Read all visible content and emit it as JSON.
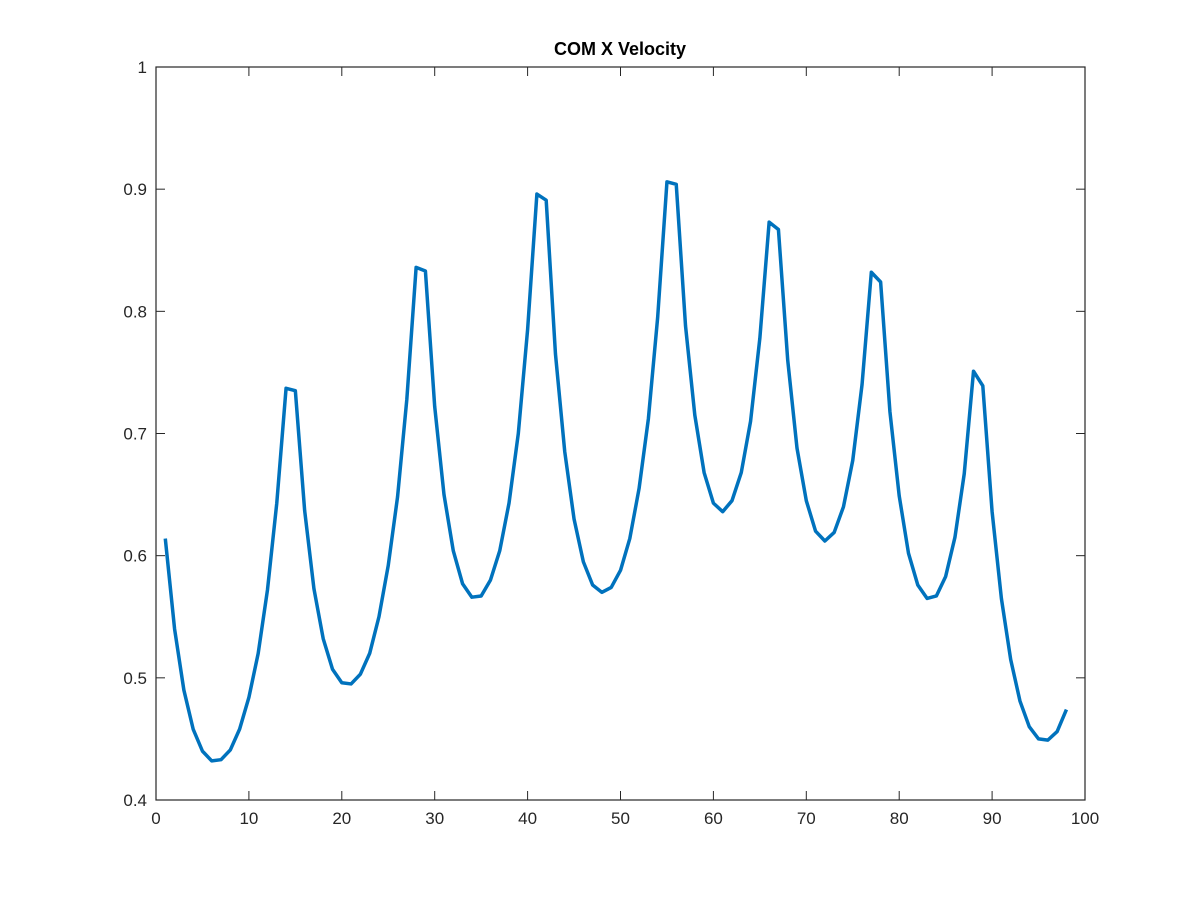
{
  "chart_data": {
    "type": "line",
    "title": "COM X Velocity",
    "xlabel": "",
    "ylabel": "",
    "xlim": [
      0,
      100
    ],
    "ylim": [
      0.4,
      1
    ],
    "xticks": [
      0,
      10,
      20,
      30,
      40,
      50,
      60,
      70,
      80,
      90,
      100
    ],
    "xtick_labels": [
      "0",
      "10",
      "20",
      "30",
      "40",
      "50",
      "60",
      "70",
      "80",
      "90",
      "100"
    ],
    "yticks": [
      0.4,
      0.5,
      0.6,
      0.7,
      0.8,
      0.9,
      1
    ],
    "ytick_labels": [
      "0.4",
      "0.5",
      "0.6",
      "0.7",
      "0.8",
      "0.9",
      "1"
    ],
    "grid": false,
    "legend": "none",
    "line_color": "#0072BD",
    "series": [
      {
        "x": [
          1,
          2,
          3,
          4,
          5,
          6,
          7,
          8,
          9,
          10,
          11,
          12,
          13,
          14,
          15,
          16,
          17,
          18,
          19,
          20,
          21,
          22,
          23,
          24,
          25,
          26,
          27,
          28,
          29,
          30,
          31,
          32,
          33,
          34,
          35,
          36,
          37,
          38,
          39,
          40,
          41,
          42,
          43,
          44,
          45,
          46,
          47,
          48,
          49,
          50,
          51,
          52,
          53,
          54,
          55,
          56,
          57,
          58,
          59,
          60,
          61,
          62,
          63,
          64,
          65,
          66,
          67,
          68,
          69,
          70,
          71,
          72,
          73,
          74,
          75,
          76,
          77,
          78,
          79,
          80,
          81,
          82,
          83,
          84,
          85,
          86,
          87,
          88,
          89,
          90,
          91,
          92,
          93,
          94,
          95,
          96,
          97,
          98
        ],
        "values": [
          0.614,
          0.54,
          0.49,
          0.458,
          0.44,
          0.432,
          0.433,
          0.441,
          0.458,
          0.484,
          0.52,
          0.572,
          0.643,
          0.737,
          0.735,
          0.637,
          0.573,
          0.532,
          0.507,
          0.496,
          0.495,
          0.503,
          0.52,
          0.55,
          0.592,
          0.648,
          0.728,
          0.836,
          0.833,
          0.722,
          0.65,
          0.604,
          0.577,
          0.566,
          0.567,
          0.58,
          0.604,
          0.643,
          0.7,
          0.785,
          0.896,
          0.891,
          0.765,
          0.685,
          0.63,
          0.595,
          0.576,
          0.57,
          0.574,
          0.588,
          0.614,
          0.655,
          0.712,
          0.795,
          0.906,
          0.904,
          0.788,
          0.715,
          0.668,
          0.643,
          0.636,
          0.645,
          0.668,
          0.71,
          0.778,
          0.873,
          0.867,
          0.76,
          0.688,
          0.645,
          0.62,
          0.612,
          0.619,
          0.64,
          0.678,
          0.74,
          0.832,
          0.824,
          0.718,
          0.649,
          0.602,
          0.576,
          0.565,
          0.567,
          0.583,
          0.615,
          0.667,
          0.751,
          0.739,
          0.636,
          0.565,
          0.515,
          0.481,
          0.46,
          0.45,
          0.449,
          0.456,
          0.474
        ]
      }
    ]
  }
}
